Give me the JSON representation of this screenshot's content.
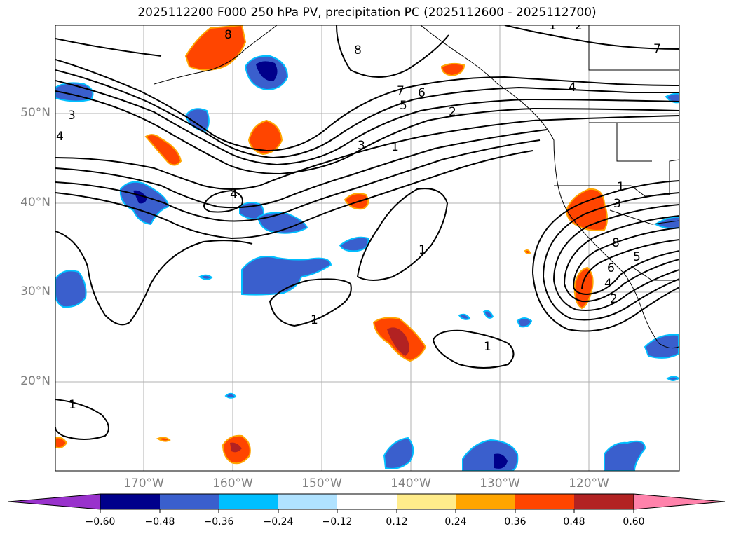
{
  "title": "2025112200 F000 250 hPa PV, precipitation PC (2025112600 - 2025112700)",
  "lat_labels": [
    "50°N",
    "40°N",
    "30°N",
    "20°N"
  ],
  "lon_labels": [
    "170°W",
    "160°W",
    "150°W",
    "140°W",
    "130°W",
    "120°W"
  ],
  "colorbar": {
    "ticks": [
      "−0.60",
      "−0.48",
      "−0.36",
      "−0.24",
      "−0.12",
      "0.12",
      "0.24",
      "0.36",
      "0.48",
      "0.60"
    ],
    "colors": [
      "#9932cc",
      "#00008b",
      "#3a5fcd",
      "#00bfff",
      "#b0e2ff",
      "#ffffff",
      "#ffec8b",
      "#ffa500",
      "#ff4500",
      "#b22222",
      "#ff82ab"
    ]
  },
  "contour_labels": [
    "8",
    "7",
    "6",
    "5",
    "4",
    "3",
    "2",
    "1",
    "3",
    "4",
    "1",
    "1",
    "1",
    "1",
    "7",
    "8",
    "4",
    "1",
    "3",
    "8",
    "6",
    "5",
    "4",
    "2",
    "1",
    "2"
  ]
}
